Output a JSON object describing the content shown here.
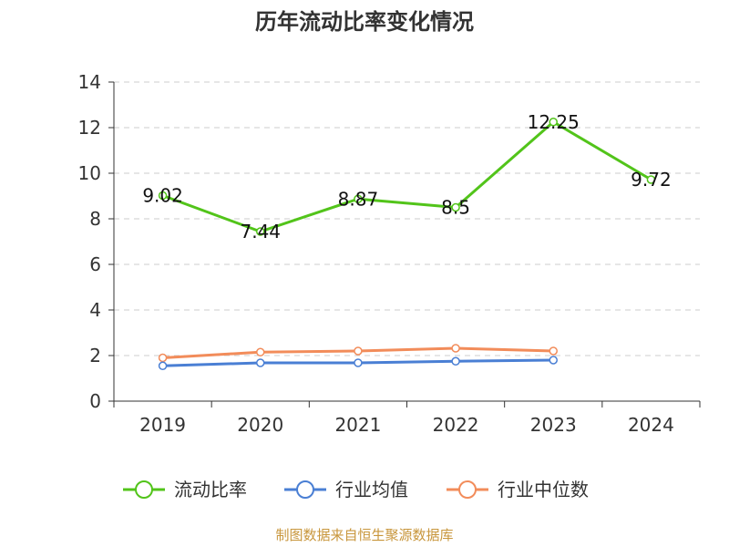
{
  "chart_data": {
    "type": "line",
    "title": "历年流动比率变化情况",
    "categories": [
      "2019",
      "2020",
      "2021",
      "2022",
      "2023",
      "2024"
    ],
    "ylim": [
      0,
      14
    ],
    "yticks": [
      "0",
      "2",
      "4",
      "6",
      "8",
      "10",
      "12",
      "14"
    ],
    "grid": true,
    "legend_position": "bottom",
    "series": [
      {
        "name": "流动比率",
        "color": "#52c41a",
        "values": [
          9.02,
          7.44,
          8.87,
          8.5,
          12.25,
          9.72
        ],
        "labels": [
          "9.02",
          "7.44",
          "8.87",
          "8.5",
          "12.25",
          "9.72"
        ]
      },
      {
        "name": "行业均值",
        "color": "#4a7fd4",
        "values": [
          1.55,
          1.68,
          1.68,
          1.75,
          1.8,
          null
        ]
      },
      {
        "name": "行业中位数",
        "color": "#f28c5a",
        "values": [
          1.9,
          2.15,
          2.2,
          2.32,
          2.2,
          null
        ]
      }
    ],
    "source": "制图数据来自恒生聚源数据库"
  }
}
